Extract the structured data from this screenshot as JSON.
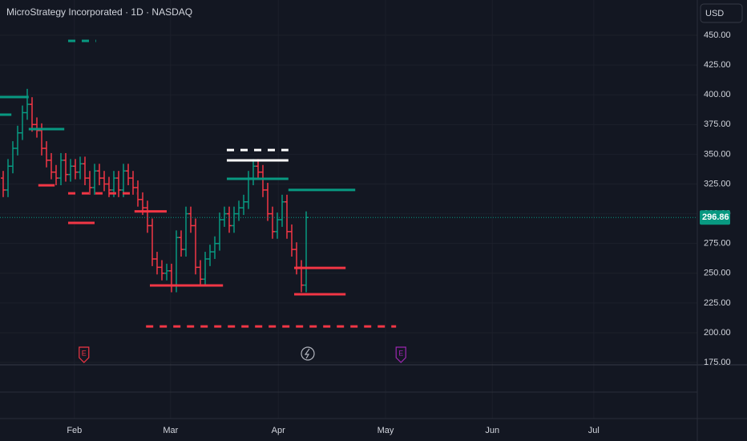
{
  "chart_data": {
    "type": "ohlc",
    "title": "MicroStrategy Incorporated · 1D · NASDAQ",
    "currency": "USD",
    "up_color": "#089981",
    "down_color": "#f23645",
    "open": [
      330,
      320,
      340,
      355,
      368,
      385,
      392,
      375,
      370,
      355,
      345,
      335,
      330,
      345,
      333,
      340,
      335,
      342,
      330,
      322,
      336,
      330,
      325,
      320,
      330,
      320,
      336,
      330,
      322,
      312,
      305,
      290,
      262,
      255,
      250,
      252,
      240,
      280,
      270,
      300,
      290,
      255,
      245,
      262,
      268,
      275,
      295,
      300,
      290,
      300,
      305,
      310,
      330,
      340,
      335,
      320,
      300,
      285,
      295,
      310,
      285,
      270,
      255,
      240
    ],
    "high": [
      336,
      346,
      361,
      374,
      391,
      405,
      398,
      381,
      376,
      361,
      351,
      341,
      351,
      351,
      346,
      346,
      348,
      348,
      336,
      342,
      342,
      336,
      331,
      336,
      336,
      342,
      342,
      336,
      328,
      318,
      311,
      296,
      268,
      261,
      258,
      258,
      286,
      286,
      306,
      306,
      296,
      261,
      268,
      274,
      281,
      301,
      306,
      306,
      306,
      311,
      316,
      336,
      346,
      346,
      341,
      326,
      306,
      301,
      316,
      316,
      291,
      276,
      261,
      302
    ],
    "low": [
      314,
      314,
      334,
      349,
      362,
      379,
      369,
      364,
      349,
      339,
      329,
      324,
      324,
      327,
      327,
      329,
      329,
      324,
      316,
      316,
      324,
      319,
      314,
      314,
      314,
      314,
      324,
      316,
      306,
      299,
      284,
      256,
      249,
      244,
      244,
      234,
      234,
      264,
      264,
      284,
      249,
      239,
      239,
      256,
      262,
      269,
      289,
      284,
      284,
      294,
      299,
      304,
      324,
      329,
      314,
      294,
      279,
      279,
      289,
      279,
      264,
      249,
      234,
      234
    ],
    "close": [
      320,
      340,
      355,
      368,
      385,
      392,
      375,
      370,
      355,
      345,
      335,
      330,
      345,
      333,
      340,
      335,
      342,
      330,
      322,
      336,
      330,
      325,
      320,
      330,
      320,
      336,
      330,
      322,
      312,
      305,
      290,
      262,
      255,
      250,
      252,
      240,
      280,
      270,
      300,
      290,
      255,
      245,
      262,
      268,
      275,
      295,
      300,
      290,
      300,
      305,
      310,
      330,
      340,
      335,
      320,
      300,
      285,
      295,
      310,
      285,
      270,
      255,
      240,
      296.86
    ],
    "last_price": 296.86,
    "xlim": [
      -0.667,
      144.33
    ],
    "ylim": [
      173,
      479.7
    ],
    "xticks": [
      {
        "value": 14.8,
        "label": "Feb"
      },
      {
        "value": 34.8,
        "label": "Mar"
      },
      {
        "value": 57.2,
        "label": "Apr"
      },
      {
        "value": 79.5,
        "label": "May"
      },
      {
        "value": 101.7,
        "label": "Jun"
      },
      {
        "value": 122.8,
        "label": "Jul"
      }
    ],
    "yticks": [
      {
        "value": 175,
        "label": "175.00"
      },
      {
        "value": 200,
        "label": "200.00"
      },
      {
        "value": 225,
        "label": "225.00"
      },
      {
        "value": 250,
        "label": "250.00"
      },
      {
        "value": 275,
        "label": "275.00"
      },
      {
        "value": 300,
        "label": "300.00"
      },
      {
        "value": 325,
        "label": "325.00"
      },
      {
        "value": 350,
        "label": "350.00"
      },
      {
        "value": 375,
        "label": "375.00"
      },
      {
        "value": 400,
        "label": "400.00"
      },
      {
        "value": 425,
        "label": "425.00"
      },
      {
        "value": 450,
        "label": "450.00"
      }
    ],
    "grid": true,
    "levels": [
      {
        "price": 445.3,
        "x0": 13.5,
        "x1": 19.3,
        "color": "#089981",
        "style": "dashed"
      },
      {
        "price": 398.1,
        "x0": -0.7,
        "x1": 5.3,
        "color": "#089981",
        "style": "solid"
      },
      {
        "price": 383.3,
        "x0": -0.7,
        "x1": 1.7,
        "color": "#089981",
        "style": "solid"
      },
      {
        "price": 371.2,
        "x0": 5.3,
        "x1": 12.7,
        "color": "#089981",
        "style": "solid"
      },
      {
        "price": 323.9,
        "x0": 7.3,
        "x1": 10.7,
        "color": "#f23645",
        "style": "solid"
      },
      {
        "price": 317.2,
        "x0": 13.5,
        "x1": 27.7,
        "color": "#f23645",
        "style": "dashed"
      },
      {
        "price": 292.3,
        "x0": 13.5,
        "x1": 19,
        "color": "#f23645",
        "style": "solid"
      },
      {
        "price": 302,
        "x0": 27.3,
        "x1": 34,
        "color": "#f23645",
        "style": "solid"
      },
      {
        "price": 353.6,
        "x0": 46.5,
        "x1": 59.3,
        "color": "#ffffff",
        "style": "dashed"
      },
      {
        "price": 344.9,
        "x0": 46.5,
        "x1": 59.3,
        "color": "#ffffff",
        "style": "solid"
      },
      {
        "price": 329.4,
        "x0": 46.5,
        "x1": 59.3,
        "color": "#089981",
        "style": "solid"
      },
      {
        "price": 320,
        "x0": 59.3,
        "x1": 73.2,
        "color": "#089981",
        "style": "solid"
      },
      {
        "price": 239.7,
        "x0": 30.5,
        "x1": 45.7,
        "color": "#f23645",
        "style": "solid"
      },
      {
        "price": 254.5,
        "x0": 60.5,
        "x1": 71.2,
        "color": "#f23645",
        "style": "solid"
      },
      {
        "price": 232.3,
        "x0": 60.5,
        "x1": 71.2,
        "color": "#f23645",
        "style": "solid"
      },
      {
        "price": 205.3,
        "x0": 29.7,
        "x1": 81.7,
        "color": "#f23645",
        "style": "dashed"
      }
    ],
    "events": [
      {
        "x": 16.8,
        "label": "E",
        "color": "#f23645"
      },
      {
        "x": 82.7,
        "label": "E",
        "color": "#9c27b0"
      }
    ]
  }
}
